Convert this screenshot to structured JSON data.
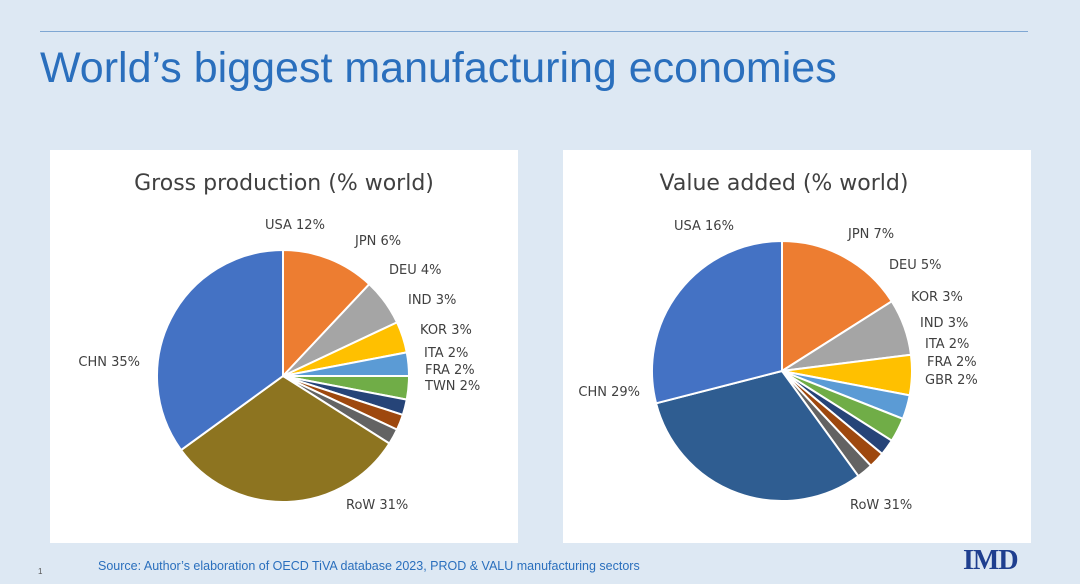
{
  "slide": {
    "title": "World’s biggest manufacturing economies",
    "source": "Source: Author’s elaboration of OECD   TiVA database 2023, PROD & VALU manufacturing sectors",
    "page_number": "1",
    "logo": "IMD"
  },
  "chart_data": [
    {
      "type": "pie",
      "title": "Gross production  (% world)",
      "slices": [
        {
          "label": "USA 12%",
          "value": 12,
          "color": "#ed7d31"
        },
        {
          "label": "JPN 6%",
          "value": 6,
          "color": "#a5a5a5"
        },
        {
          "label": "DEU 4%",
          "value": 4,
          "color": "#ffc000"
        },
        {
          "label": "IND 3%",
          "value": 3,
          "color": "#5b9bd5"
        },
        {
          "label": "KOR 3%",
          "value": 3,
          "color": "#70ad47"
        },
        {
          "label": "ITA 2%",
          "value": 2,
          "color": "#264478"
        },
        {
          "label": "FRA 2%",
          "value": 2,
          "color": "#9e480e"
        },
        {
          "label": "TWN 2%",
          "value": 2,
          "color": "#636363"
        },
        {
          "label": "RoW 31%",
          "value": 31,
          "color": "#8d7420"
        },
        {
          "label": "CHN 35%",
          "value": 35,
          "color": "#4472c4"
        }
      ]
    },
    {
      "type": "pie",
      "title": "Value added (% world)",
      "slices": [
        {
          "label": "USA 16%",
          "value": 16,
          "color": "#ed7d31"
        },
        {
          "label": "JPN 7%",
          "value": 7,
          "color": "#a5a5a5"
        },
        {
          "label": "DEU 5%",
          "value": 5,
          "color": "#ffc000"
        },
        {
          "label": "KOR 3%",
          "value": 3,
          "color": "#5b9bd5"
        },
        {
          "label": "IND 3%",
          "value": 3,
          "color": "#70ad47"
        },
        {
          "label": "ITA 2%",
          "value": 2,
          "color": "#264478"
        },
        {
          "label": "FRA 2%",
          "value": 2,
          "color": "#9e480e"
        },
        {
          "label": "GBR 2%",
          "value": 2,
          "color": "#636363"
        },
        {
          "label": "RoW 31%",
          "value": 31,
          "color": "#2f5d91"
        },
        {
          "label": "CHN 29%",
          "value": 29,
          "color": "#4472c4"
        }
      ]
    }
  ]
}
